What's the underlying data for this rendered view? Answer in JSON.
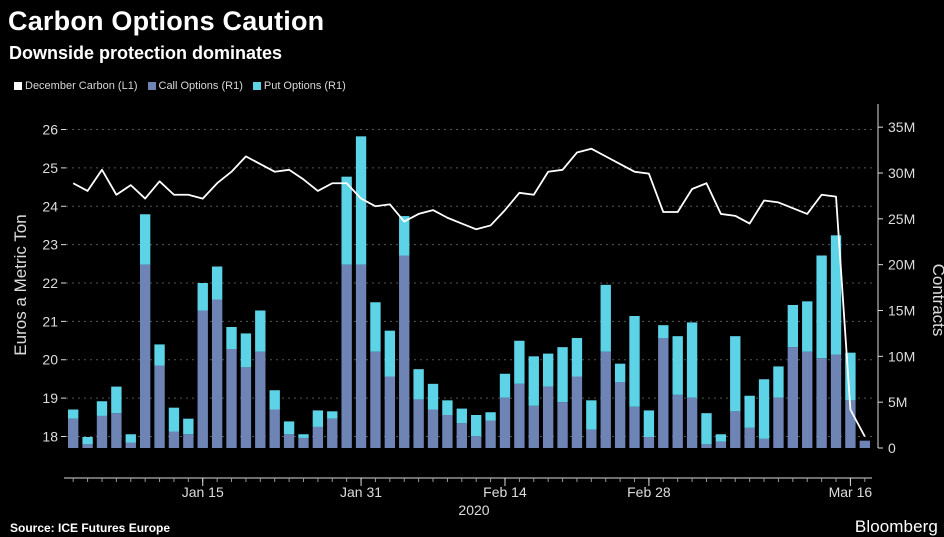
{
  "header": {
    "title": "Carbon Options Caution",
    "subtitle": "Downside protection dominates"
  },
  "footer": {
    "source": "Source: ICE Futures Europe",
    "brand": "Bloomberg"
  },
  "colors": {
    "background": "#000000",
    "line": "#ffffff",
    "call": "#6e84b4",
    "put": "#5cd3e6",
    "axis_text": "#dddddd"
  },
  "chart_data": {
    "type": "bar",
    "title": "Carbon Options Caution",
    "subtitle": "Downside protection dominates",
    "legend": {
      "placement": "top-left",
      "entries": [
        "December Carbon (L1)",
        "Call Options (R1)",
        "Put Options (R1)"
      ]
    },
    "x_tick_labels": [
      "Jan 15",
      "Jan 31",
      "Feb 14",
      "Feb 28",
      "Mar 16"
    ],
    "x_year_label": "2020",
    "y_left": {
      "label": "Euros a Metric Ton",
      "ylim": [
        17.7,
        26.3
      ],
      "ticks": [
        18,
        19,
        20,
        21,
        22,
        23,
        24,
        25,
        26
      ]
    },
    "y_right": {
      "label": "Contracts",
      "ylim": [
        0,
        36
      ],
      "unit": "M",
      "tick_labels": [
        "0",
        "5M",
        "10M",
        "15M",
        "20M",
        "25M",
        "30M",
        "35M"
      ]
    },
    "grid": true,
    "series": [
      {
        "name": "December Carbon (L1)",
        "type": "line",
        "axis": "left",
        "values": [
          24.6,
          24.4,
          24.95,
          24.3,
          24.55,
          24.2,
          24.65,
          24.3,
          24.3,
          24.2,
          24.6,
          24.9,
          25.3,
          25.1,
          24.9,
          24.95,
          24.7,
          24.4,
          24.6,
          24.6,
          24.2,
          24.0,
          24.05,
          23.6,
          23.8,
          23.9,
          23.7,
          23.55,
          23.4,
          23.5,
          23.9,
          24.35,
          24.3,
          24.9,
          24.95,
          25.4,
          25.5,
          25.3,
          25.1,
          24.9,
          24.85,
          23.85,
          23.85,
          24.45,
          24.6,
          23.8,
          23.75,
          23.55,
          24.15,
          24.1,
          23.95,
          23.8,
          24.3,
          24.25,
          18.7,
          18.0
        ]
      },
      {
        "name": "Call Options (R1)",
        "type": "bar",
        "axis": "right",
        "values": [
          3.2,
          0.4,
          3.5,
          3.8,
          0.6,
          20.0,
          9.0,
          1.8,
          1.5,
          15.0,
          16.2,
          10.8,
          8.8,
          10.5,
          4.2,
          1.5,
          1.1,
          2.3,
          3.2,
          20.0,
          20.0,
          10.5,
          7.8,
          21.0,
          5.3,
          4.2,
          3.6,
          2.7,
          1.3,
          3.0,
          5.5,
          7.0,
          4.6,
          6.7,
          5.0,
          7.8,
          2.0,
          10.5,
          7.2,
          4.5,
          1.2,
          12.0,
          5.8,
          5.5,
          0.4,
          0.7,
          4.0,
          2.2,
          1.0,
          5.5,
          11.0,
          10.5,
          9.8,
          10.2,
          5.2,
          0.8
        ]
      },
      {
        "name": "Put Options (R1)",
        "type": "bar",
        "axis": "right",
        "values": [
          1.0,
          0.8,
          1.6,
          2.9,
          0.9,
          5.5,
          2.3,
          2.6,
          1.7,
          3.0,
          3.6,
          2.4,
          3.7,
          4.5,
          2.1,
          1.4,
          0.4,
          1.8,
          0.8,
          9.6,
          14.0,
          5.4,
          5.0,
          4.3,
          3.3,
          2.8,
          1.6,
          1.6,
          2.3,
          0.9,
          2.6,
          4.7,
          5.4,
          3.6,
          6.0,
          4.2,
          3.2,
          7.3,
          2.0,
          9.9,
          2.9,
          1.4,
          6.4,
          8.2,
          3.4,
          0.8,
          8.2,
          3.5,
          6.5,
          3.4,
          4.6,
          5.5,
          11.2,
          13.0,
          5.2,
          0.0
        ]
      }
    ]
  }
}
